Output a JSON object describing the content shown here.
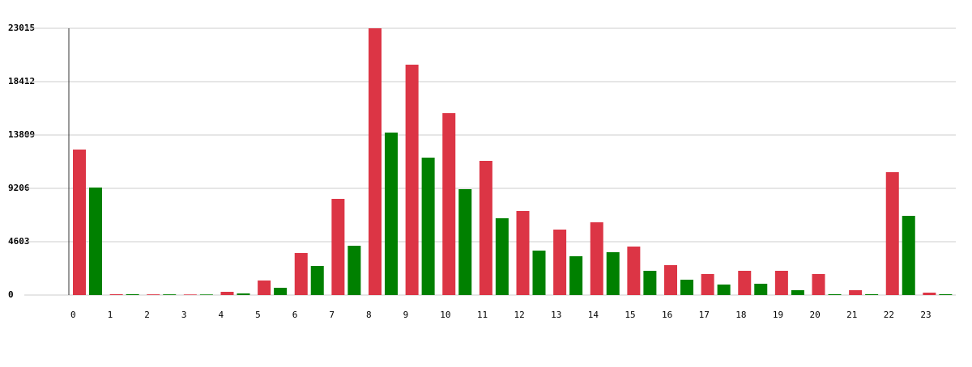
{
  "chart_data": {
    "type": "bar",
    "categories": [
      "0",
      "1",
      "2",
      "3",
      "4",
      "5",
      "6",
      "7",
      "8",
      "9",
      "10",
      "11",
      "12",
      "13",
      "14",
      "15",
      "16",
      "17",
      "18",
      "19",
      "20",
      "21",
      "22",
      "23"
    ],
    "series": [
      {
        "color": "#dc3545",
        "values": [
          12553,
          70,
          60,
          50,
          280,
          1255,
          3626,
          8299,
          23015,
          19876,
          15692,
          11577,
          7253,
          5649,
          6277,
          4184,
          2580,
          1813,
          2092,
          2092,
          1813,
          418,
          10600,
          209
        ]
      },
      {
        "color": "#008000",
        "values": [
          9275,
          70,
          60,
          50,
          140,
          628,
          2511,
          4254,
          14018,
          11856,
          9136,
          6625,
          3836,
          3348,
          3696,
          2092,
          1325,
          907,
          976,
          418,
          70,
          70,
          6834,
          70
        ]
      }
    ],
    "ylim": [
      0,
      23015
    ],
    "yticks": [
      0,
      4603,
      9206,
      13809,
      18412,
      23015
    ],
    "grid": true
  }
}
